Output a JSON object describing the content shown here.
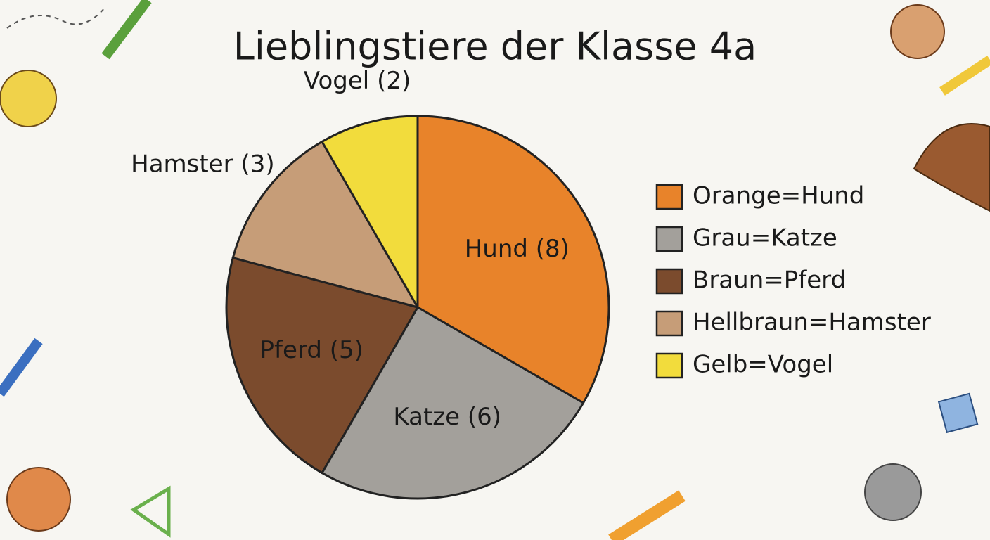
{
  "chart_data": {
    "type": "pie",
    "title": "Lieblingstiere der Klasse 4a",
    "categories": [
      "Hund",
      "Katze",
      "Pferd",
      "Hamster",
      "Vogel"
    ],
    "values": [
      8,
      6,
      5,
      3,
      2
    ],
    "value_labels": [
      "Hund (8)",
      "Katze (6)",
      "Pferd (5)",
      "Hamster (3)",
      "Vogel (2)"
    ],
    "colors": [
      "#e8832a",
      "#a3a09b",
      "#7b4b2d",
      "#c69d78",
      "#f2dc3c"
    ],
    "legend": [
      "Orange=Hund",
      "Grau=Katze",
      "Braun=Pferd",
      "Hellbraun=Hamster",
      "Gelb=Vogel"
    ],
    "legend_position": "right"
  }
}
